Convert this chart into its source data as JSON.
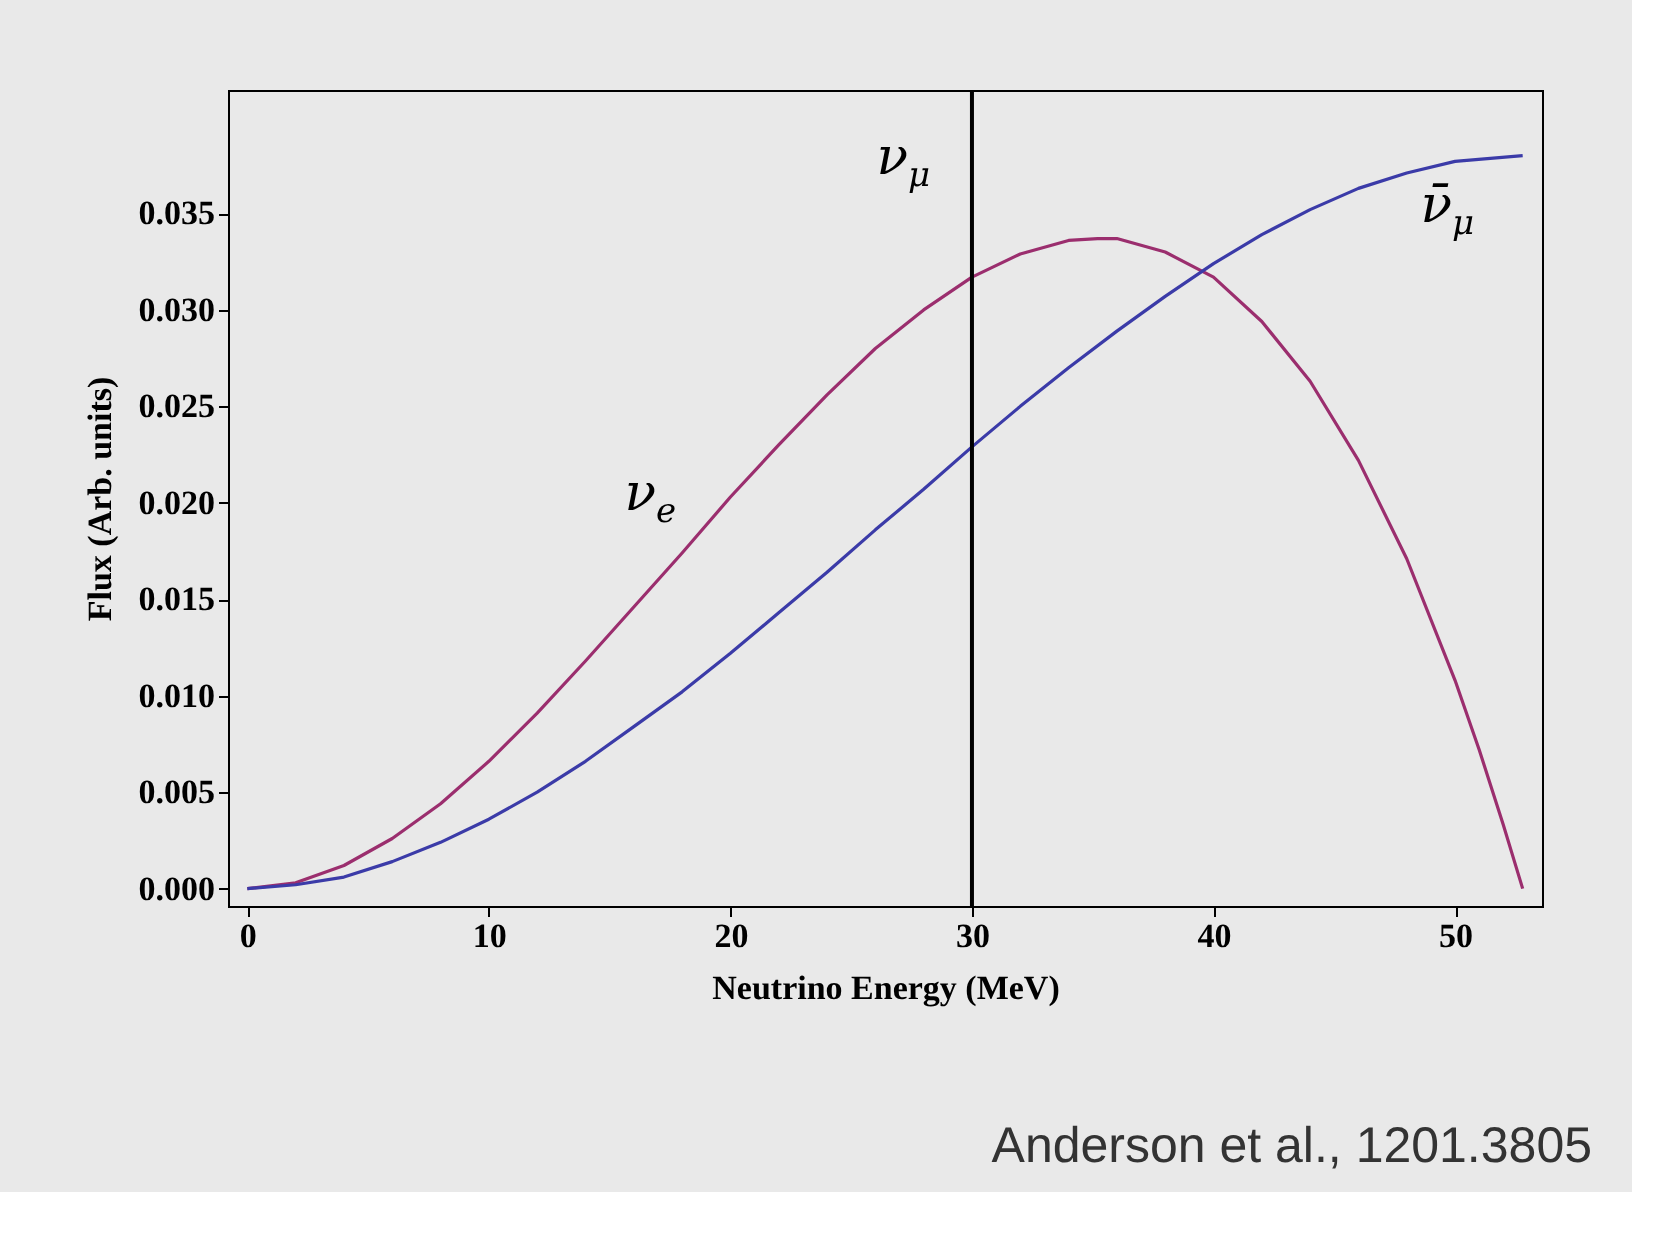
{
  "chart_data": {
    "type": "line",
    "xlabel": "Neutrino Energy (MeV)",
    "ylabel": "Flux (Arb. units)",
    "xlim": [
      -0.8,
      53.6
    ],
    "ylim": [
      -0.0009,
      0.0414
    ],
    "xticks": [
      0,
      10,
      20,
      30,
      40,
      50
    ],
    "yticks": [
      {
        "value": 0,
        "label": "0.000"
      },
      {
        "value": 0.005,
        "label": "0.005"
      },
      {
        "value": 0.01,
        "label": "0.010"
      },
      {
        "value": 0.015,
        "label": "0.015"
      },
      {
        "value": 0.02,
        "label": "0.020"
      },
      {
        "value": 0.025,
        "label": "0.025"
      },
      {
        "value": 0.03,
        "label": "0.030"
      },
      {
        "value": 0.035,
        "label": "0.035"
      }
    ],
    "grid": false,
    "marker": "none",
    "line_style": "solid",
    "series": [
      {
        "color": "#9b2e6e",
        "x": [
          0,
          2,
          4,
          6,
          8,
          10,
          12,
          14,
          16,
          18,
          20,
          22,
          24,
          26,
          28,
          30,
          32,
          34,
          35.2,
          36,
          38,
          40,
          42,
          44,
          46,
          48,
          50,
          51,
          52,
          52.8
        ],
        "values": [
          0,
          0.0003,
          0.0012,
          0.0026,
          0.0044,
          0.0066,
          0.0091,
          0.0118,
          0.0146,
          0.0174,
          0.0203,
          0.023,
          0.0256,
          0.028,
          0.03,
          0.0317,
          0.0329,
          0.0336,
          0.0337,
          0.0337,
          0.033,
          0.0317,
          0.0294,
          0.0263,
          0.0222,
          0.0171,
          0.0108,
          0.0072,
          0.0033,
          0
        ]
      },
      {
        "color": "#3b3ba8",
        "x": [
          0,
          2,
          4,
          6,
          8,
          10,
          12,
          14,
          16,
          18,
          20,
          22,
          24,
          26,
          28,
          30,
          32,
          34,
          36,
          38,
          40,
          42,
          44,
          46,
          48,
          50,
          52.8
        ],
        "values": [
          0,
          0.0002,
          0.0006,
          0.0014,
          0.0024,
          0.0036,
          0.005,
          0.0066,
          0.0084,
          0.0102,
          0.0122,
          0.0143,
          0.0164,
          0.0186,
          0.0207,
          0.0229,
          0.025,
          0.027,
          0.0289,
          0.0307,
          0.0324,
          0.0339,
          0.0352,
          0.0363,
          0.0371,
          0.0377,
          0.038
        ]
      }
    ],
    "ref_lines": [
      {
        "axis": "x",
        "value": 30,
        "color": "#000000"
      }
    ],
    "annotations": [
      "ν$_{e}$",
      "ν$_{μ}$",
      "ν̄$_{μ}$",
      "Anderson et al., 1201.3805"
    ]
  }
}
